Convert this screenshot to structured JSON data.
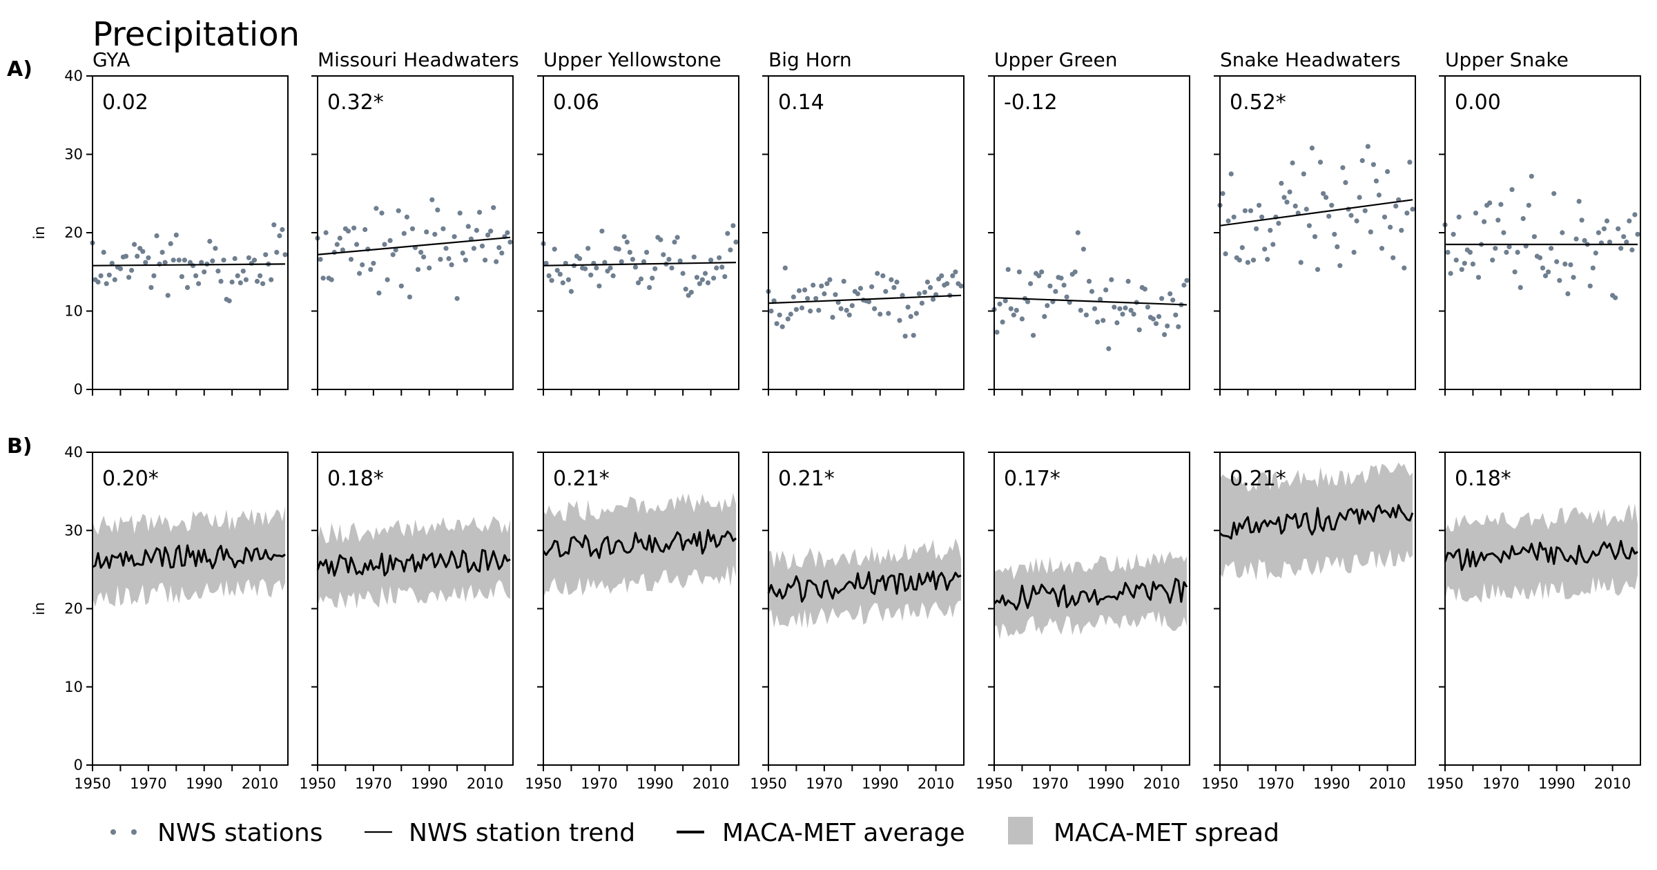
{
  "title": "Precipitation",
  "row_labels": [
    "A)",
    "B)"
  ],
  "colors": {
    "stations": "#6f7f90",
    "trend": "#000000",
    "maca_average": "#000000",
    "maca_spread": "#c0c0c0"
  },
  "legend": [
    {
      "label": "NWS stations",
      "icon": "dots-icon"
    },
    {
      "label": "NWS station trend",
      "icon": "thin-line-icon"
    },
    {
      "label": "MACA-MET average",
      "icon": "thick-line-icon"
    },
    {
      "label": "MACA-MET spread",
      "icon": "gray-patch-icon"
    }
  ],
  "chart_data": [
    {
      "type": "scatter",
      "row": "A)",
      "description": "Annual precipitation from NWS stations with linear trend; number is trend value (* significant)",
      "xlim": [
        1950,
        2020
      ],
      "ylim": [
        0,
        40
      ],
      "xticks": [
        "1950",
        "1970",
        "1990",
        "2010"
      ],
      "yticks": [
        "0",
        "10",
        "20",
        "30",
        "40"
      ],
      "ylabel": "in",
      "panels": [
        {
          "name": "GYA",
          "stat": "0.02",
          "trend": [
            15.8,
            16.0
          ],
          "points": [
            18.7,
            14.0,
            13.7,
            14.5,
            17.5,
            13.5,
            14.6,
            16.1,
            14.0,
            15.6,
            15.4,
            16.9,
            17.0,
            14.3,
            15.2,
            18.5,
            17.0,
            18.0,
            17.6,
            16.2,
            16.8,
            13.0,
            14.5,
            19.6,
            16.0,
            17.5,
            16.2,
            12.0,
            18.6,
            16.5,
            19.7,
            16.5,
            14.4,
            16.5,
            13.0,
            16.2,
            15.8,
            14.5,
            13.5,
            16.2,
            15.0,
            16.0,
            18.9,
            16.4,
            18.0,
            15.1,
            13.8,
            16.5,
            11.5,
            11.3,
            13.7,
            16.7,
            14.5,
            13.6,
            15.1,
            14.0,
            16.8,
            16.1,
            16.5,
            13.8,
            14.5,
            13.5,
            17.2,
            16.0,
            14.0,
            21.0,
            17.5,
            19.6,
            20.4,
            17.2
          ]
        },
        {
          "name": "Missouri Headwaters",
          "stat": "0.32*",
          "trend": [
            17.2,
            19.4
          ],
          "points": [
            19.3,
            16.6,
            14.2,
            20.0,
            14.2,
            14.0,
            17.5,
            18.5,
            19.3,
            17.8,
            20.5,
            20.2,
            16.6,
            20.6,
            18.5,
            14.8,
            15.9,
            20.4,
            17.9,
            15.3,
            16.1,
            23.1,
            12.3,
            22.5,
            18.5,
            14.0,
            19.0,
            17.2,
            17.8,
            22.8,
            13.2,
            19.9,
            22.0,
            11.8,
            20.5,
            18.1,
            15.3,
            17.5,
            16.9,
            20.1,
            15.5,
            24.2,
            19.8,
            22.9,
            16.6,
            20.5,
            18.0,
            16.7,
            15.9,
            19.5,
            11.6,
            22.5,
            17.4,
            16.5,
            20.8,
            19.2,
            18.0,
            20.3,
            22.6,
            18.3,
            16.5,
            19.7,
            20.2,
            23.2,
            16.3,
            18.1,
            17.4,
            19.5,
            20.0,
            18.8
          ]
        },
        {
          "name": "Upper Yellowstone",
          "stat": "0.06",
          "trend": [
            15.8,
            16.2
          ],
          "points": [
            18.6,
            16.1,
            14.5,
            13.9,
            17.9,
            15.2,
            14.7,
            13.6,
            16.1,
            14.0,
            12.5,
            15.8,
            17.0,
            16.7,
            15.5,
            15.4,
            18.0,
            14.6,
            16.1,
            15.5,
            13.2,
            20.2,
            16.2,
            15.1,
            15.5,
            14.5,
            18.0,
            17.9,
            16.3,
            19.5,
            18.8,
            17.5,
            16.6,
            15.6,
            13.6,
            14.1,
            16.3,
            17.5,
            13.0,
            14.2,
            15.4,
            19.4,
            19.1,
            17.2,
            16.0,
            16.6,
            15.5,
            18.8,
            19.4,
            16.4,
            14.8,
            12.8,
            12.0,
            12.4,
            16.9,
            14.3,
            13.5,
            14.0,
            14.8,
            13.6,
            16.5,
            14.2,
            15.5,
            16.8,
            15.6,
            14.4,
            19.9,
            17.8,
            20.9,
            18.8
          ]
        },
        {
          "name": "Big Horn",
          "stat": "0.14",
          "trend": [
            11.0,
            12.0
          ],
          "points": [
            12.5,
            10.0,
            11.3,
            8.4,
            9.5,
            8.0,
            15.5,
            9.0,
            9.6,
            11.8,
            10.2,
            12.6,
            10.4,
            12.7,
            11.6,
            10.0,
            13.3,
            11.6,
            10.1,
            13.2,
            12.2,
            13.5,
            14.0,
            9.2,
            12.1,
            11.1,
            10.3,
            13.8,
            10.1,
            9.5,
            10.7,
            12.5,
            12.2,
            12.9,
            11.4,
            11.3,
            11.2,
            13.1,
            10.3,
            14.8,
            9.6,
            14.5,
            12.5,
            9.7,
            14.0,
            13.0,
            13.7,
            8.8,
            12.0,
            6.8,
            10.5,
            9.3,
            6.9,
            9.7,
            12.2,
            11.0,
            12.4,
            13.7,
            13.0,
            11.5,
            12.1,
            14.1,
            14.5,
            13.3,
            13.5,
            12.0,
            14.5,
            15.0,
            13.5,
            13.2
          ]
        },
        {
          "name": "Upper Green",
          "stat": "-0.12",
          "trend": [
            11.7,
            10.8
          ],
          "points": [
            10.2,
            7.3,
            10.9,
            8.6,
            11.3,
            15.3,
            10.3,
            9.5,
            10.1,
            15.0,
            9.0,
            11.6,
            11.2,
            13.5,
            6.9,
            14.8,
            14.5,
            15.0,
            9.3,
            10.7,
            13.2,
            11.2,
            12.5,
            14.3,
            14.2,
            13.3,
            11.8,
            11.1,
            14.7,
            15.0,
            20.0,
            10.1,
            17.9,
            9.5,
            13.8,
            12.5,
            10.3,
            8.6,
            11.5,
            8.8,
            12.7,
            5.2,
            14.0,
            10.5,
            8.5,
            10.3,
            9.6,
            10.4,
            13.8,
            10.1,
            9.6,
            11.1,
            7.6,
            13.0,
            12.8,
            10.5,
            9.2,
            9.0,
            8.4,
            9.3,
            11.6,
            7.0,
            8.1,
            12.2,
            11.4,
            9.5,
            8.0,
            10.8,
            13.3,
            13.9
          ]
        },
        {
          "name": "Snake Headwaters",
          "stat": "0.52*",
          "trend": [
            20.9,
            24.2
          ],
          "points": [
            23.5,
            25.0,
            17.3,
            21.5,
            27.5,
            22.0,
            16.8,
            16.5,
            18.1,
            22.8,
            16.2,
            22.8,
            16.5,
            20.5,
            23.5,
            22.0,
            17.9,
            16.6,
            20.3,
            18.5,
            22.0,
            21.2,
            26.3,
            24.5,
            23.9,
            25.2,
            28.9,
            23.4,
            22.5,
            16.2,
            27.5,
            23.0,
            20.9,
            30.8,
            19.5,
            15.3,
            29.0,
            25.0,
            24.5,
            22.1,
            23.5,
            19.8,
            18.2,
            15.8,
            28.3,
            26.4,
            23.0,
            22.2,
            17.5,
            21.5,
            24.5,
            29.2,
            22.8,
            31.0,
            20.1,
            28.7,
            26.6,
            24.8,
            18.0,
            22.0,
            27.8,
            20.7,
            16.8,
            23.4,
            24.2,
            20.3,
            15.5,
            22.5,
            29.0,
            23.0
          ]
        },
        {
          "name": "Upper Snake",
          "stat": "0.00",
          "trend": [
            18.5,
            18.5
          ],
          "points": [
            21.0,
            17.5,
            14.8,
            19.8,
            16.5,
            22.0,
            15.3,
            16.1,
            17.8,
            17.5,
            16.0,
            22.5,
            14.3,
            18.5,
            21.4,
            23.5,
            23.8,
            16.5,
            18.0,
            21.6,
            23.6,
            20.0,
            17.5,
            18.2,
            25.5,
            15.0,
            17.5,
            13.0,
            21.8,
            18.3,
            23.5,
            27.2,
            19.5,
            17.0,
            16.8,
            15.5,
            14.5,
            15.0,
            18.0,
            25.0,
            16.3,
            13.9,
            20.0,
            16.0,
            12.2,
            15.9,
            14.3,
            19.2,
            24.0,
            21.6,
            19.0,
            18.5,
            13.2,
            15.5,
            17.4,
            20.0,
            18.7,
            20.5,
            21.5,
            18.8,
            12.0,
            11.7,
            20.5,
            18.0,
            19.5,
            18.8,
            21.5,
            17.8,
            22.3,
            19.8
          ]
        }
      ]
    },
    {
      "type": "area",
      "row": "B)",
      "description": "MACA-MET modeled annual precipitation: ensemble average line with spread band; number is trend value (* significant)",
      "xlim": [
        1950,
        2020
      ],
      "ylim": [
        0,
        40
      ],
      "xticks": [
        "1950",
        "1970",
        "1990",
        "2010"
      ],
      "yticks": [
        "0",
        "10",
        "20",
        "30",
        "40"
      ],
      "ylabel": "in",
      "panels": [
        {
          "name": "GYA",
          "stat": "0.20*",
          "base": [
            26.0,
            27.2
          ],
          "spread_low": 4.5,
          "spread_high": 4.5
        },
        {
          "name": "Missouri Headwaters",
          "stat": "0.18*",
          "base": [
            25.2,
            26.6
          ],
          "spread_low": 4.2,
          "spread_high": 4.3
        },
        {
          "name": "Upper Yellowstone",
          "stat": "0.21*",
          "base": [
            27.5,
            29.0
          ],
          "spread_low": 4.8,
          "spread_high": 4.8
        },
        {
          "name": "Big Horn",
          "stat": "0.21*",
          "base": [
            22.3,
            23.9
          ],
          "spread_low": 3.8,
          "spread_high": 3.8
        },
        {
          "name": "Upper Green",
          "stat": "0.17*",
          "base": [
            21.2,
            22.4
          ],
          "spread_low": 3.8,
          "spread_high": 3.8
        },
        {
          "name": "Snake Headwaters",
          "stat": "0.21*",
          "base": [
            30.2,
            32.2
          ],
          "spread_low": 5.6,
          "spread_high": 5.6
        },
        {
          "name": "Upper Snake",
          "stat": "0.18*",
          "base": [
            26.2,
            27.6
          ],
          "spread_low": 4.5,
          "spread_high": 4.5
        }
      ]
    }
  ]
}
